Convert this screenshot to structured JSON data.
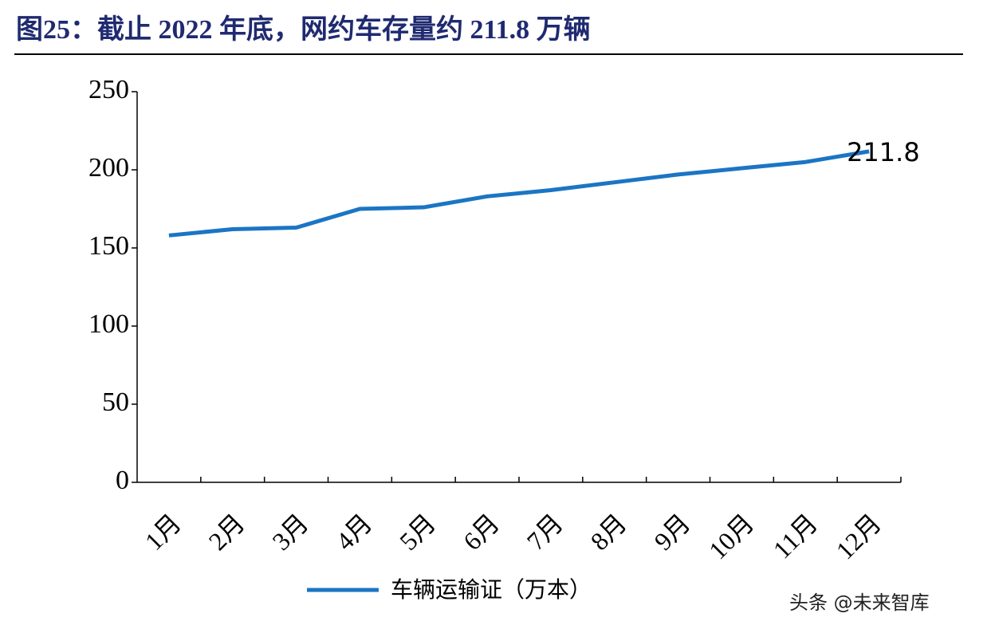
{
  "chart_data": {
    "type": "line",
    "title": "图25：截止 2022 年底，网约车存量约 211.8 万辆",
    "categories": [
      "1月",
      "2月",
      "3月",
      "4月",
      "5月",
      "6月",
      "7月",
      "8月",
      "9月",
      "10月",
      "11月",
      "12月"
    ],
    "series": [
      {
        "name": "车辆运输证（万本）",
        "color": "#1b75c4",
        "values": [
          158,
          162,
          163,
          175,
          176,
          183,
          187,
          192,
          197,
          201,
          205,
          211.8
        ]
      }
    ],
    "ylim": [
      0,
      250
    ],
    "yticks": [
      0,
      50,
      100,
      150,
      200,
      250
    ],
    "grid": false,
    "label_last_point": true,
    "legend": "bottom"
  },
  "watermark": "头条 @未来智库"
}
